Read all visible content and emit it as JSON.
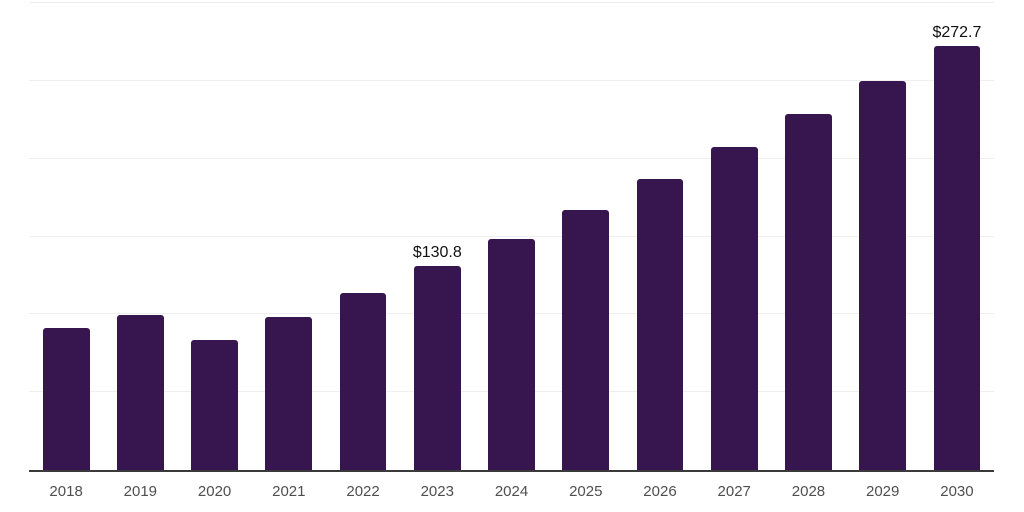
{
  "chart_data": {
    "type": "bar",
    "title": "",
    "xlabel": "",
    "ylabel": "",
    "categories": [
      "2018",
      "2019",
      "2020",
      "2021",
      "2022",
      "2023",
      "2024",
      "2025",
      "2026",
      "2027",
      "2028",
      "2029",
      "2030"
    ],
    "values": [
      91.2,
      99.4,
      83.4,
      98.0,
      113.5,
      130.8,
      148.5,
      167.2,
      187.0,
      207.3,
      228.7,
      250.0,
      272.7
    ],
    "point_labels": [
      "",
      "",
      "",
      "",
      "",
      "$130.8",
      "",
      "",
      "",
      "",
      "",
      "",
      "$272.7"
    ],
    "ylim": [
      0,
      300
    ],
    "gridline_values": [
      50,
      100,
      150,
      200,
      250,
      300
    ],
    "grid": true,
    "legend": false,
    "colors": {
      "bar": "#37164f",
      "gridline": "#efefef",
      "axis_line": "#3a3a3a",
      "x_tick_label": "#4f4f4f",
      "data_label": "#111111",
      "background": "#ffffff"
    }
  }
}
